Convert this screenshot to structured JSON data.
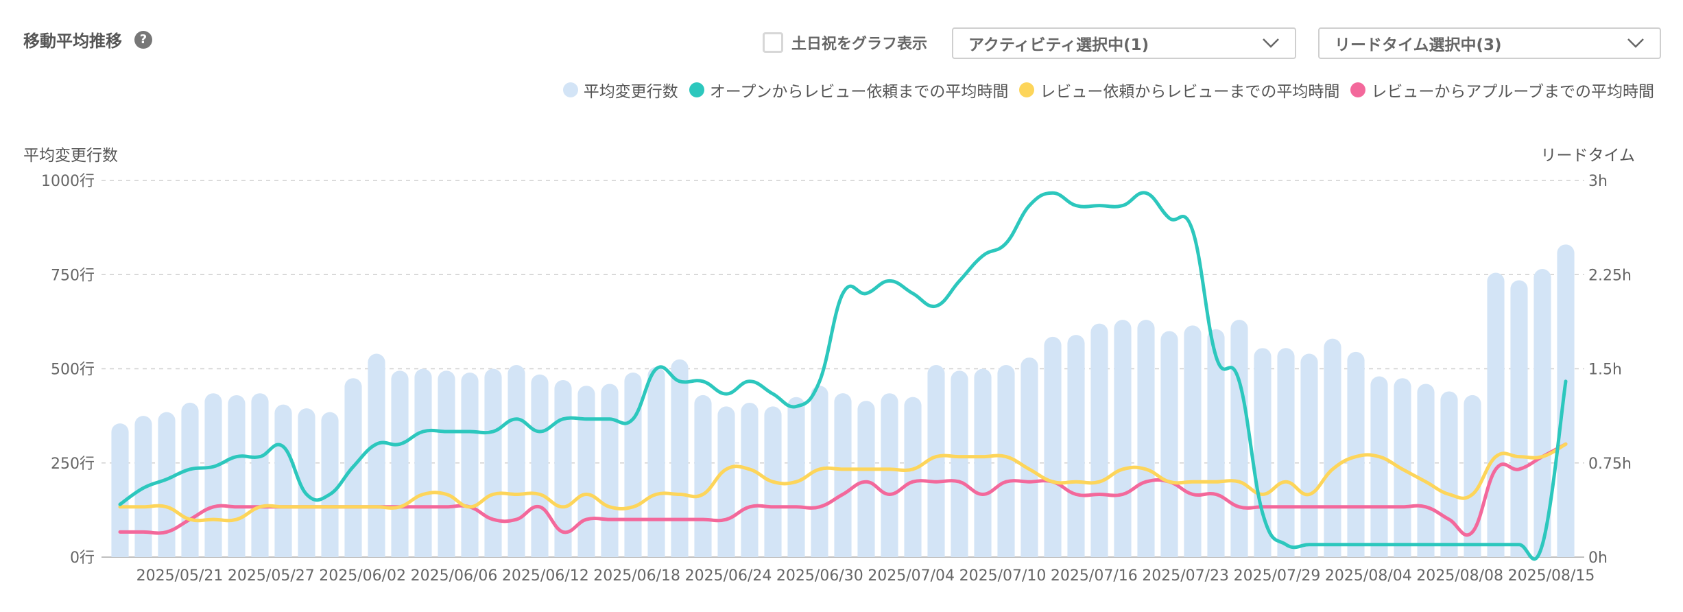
{
  "header": {
    "title": "移動平均推移",
    "help_icon": "question-circle-icon",
    "help_glyph": "?"
  },
  "controls": {
    "weekend_checkbox_label": "土日祝をグラフ表示",
    "weekend_checked": false,
    "activity_select_value": "アクティビティ選択中(1)",
    "leadtime_select_value": "リードタイム選択中(3)",
    "dropdown_icon": "chevron-down-icon"
  },
  "legend": [
    {
      "label": "平均変更行数",
      "color": "#d3e4f6"
    },
    {
      "label": "オープンからレビュー依頼までの平均時間",
      "color": "#2cc7bd"
    },
    {
      "label": "レビュー依頼からレビューまでの平均時間",
      "color": "#fdd55a"
    },
    {
      "label": "レビューからアプルーブまでの平均時間",
      "color": "#f3689b"
    }
  ],
  "chart_data": {
    "type": "bar+line",
    "left_axis_title": "平均変更行数",
    "right_axis_title": "リードタイム",
    "left_ticks": [
      "0行",
      "250行",
      "500行",
      "750行",
      "1000行"
    ],
    "right_ticks": [
      "0h",
      "0.75h",
      "1.5h",
      "2.25h",
      "3h"
    ],
    "left_ylim": [
      0,
      1000
    ],
    "right_ylim": [
      0,
      3
    ],
    "x_tick_labels": [
      "2025/05/21",
      "2025/05/27",
      "2025/06/02",
      "2025/06/06",
      "2025/06/12",
      "2025/06/18",
      "2025/06/24",
      "2025/06/30",
      "2025/07/04",
      "2025/07/10",
      "2025/07/16",
      "2025/07/23",
      "2025/07/29",
      "2025/08/04",
      "2025/08/08",
      "2025/08/15"
    ],
    "grid": "horizontal-dashed",
    "legend_position": "top-right",
    "bar_series": {
      "name": "平均変更行数",
      "color": "#d3e4f6",
      "values": [
        355,
        375,
        385,
        410,
        435,
        430,
        435,
        405,
        395,
        385,
        475,
        540,
        495,
        500,
        495,
        490,
        500,
        510,
        485,
        470,
        455,
        460,
        490,
        505,
        525,
        430,
        400,
        410,
        400,
        425,
        455,
        435,
        415,
        435,
        425,
        510,
        495,
        500,
        510,
        530,
        585,
        590,
        620,
        630,
        630,
        600,
        615,
        605,
        630,
        555,
        555,
        540,
        580,
        545,
        480,
        475,
        460,
        440,
        430,
        755,
        735,
        765,
        830
      ]
    },
    "line_series": [
      {
        "name": "オープンからレビュー依頼までの平均時間",
        "color": "#2cc7bd",
        "values": [
          0.42,
          0.55,
          0.62,
          0.7,
          0.72,
          0.8,
          0.8,
          0.88,
          0.5,
          0.5,
          0.72,
          0.9,
          0.9,
          1.0,
          1.0,
          1.0,
          1.0,
          1.1,
          1.0,
          1.1,
          1.1,
          1.1,
          1.1,
          1.5,
          1.4,
          1.4,
          1.3,
          1.4,
          1.3,
          1.2,
          1.4,
          2.1,
          2.1,
          2.2,
          2.1,
          2.0,
          2.2,
          2.4,
          2.5,
          2.8,
          2.9,
          2.8,
          2.8,
          2.8,
          2.9,
          2.7,
          2.6,
          1.6,
          1.4,
          0.35,
          0.1,
          0.1,
          0.1,
          0.1,
          0.1,
          0.1,
          0.1,
          0.1,
          0.1,
          0.1,
          0.1,
          0.1,
          1.4
        ]
      },
      {
        "name": "レビュー依頼からレビューまでの平均時間",
        "color": "#fdd55a",
        "values": [
          0.4,
          0.4,
          0.4,
          0.3,
          0.3,
          0.3,
          0.4,
          0.4,
          0.4,
          0.4,
          0.4,
          0.4,
          0.4,
          0.5,
          0.5,
          0.4,
          0.5,
          0.5,
          0.5,
          0.4,
          0.5,
          0.4,
          0.4,
          0.5,
          0.5,
          0.5,
          0.7,
          0.7,
          0.6,
          0.6,
          0.7,
          0.7,
          0.7,
          0.7,
          0.7,
          0.8,
          0.8,
          0.8,
          0.8,
          0.7,
          0.6,
          0.6,
          0.6,
          0.7,
          0.7,
          0.6,
          0.6,
          0.6,
          0.6,
          0.5,
          0.6,
          0.5,
          0.7,
          0.8,
          0.8,
          0.7,
          0.6,
          0.5,
          0.5,
          0.8,
          0.8,
          0.8,
          0.9
        ]
      },
      {
        "name": "レビューからアプルーブまでの平均時間",
        "color": "#f3689b",
        "values": [
          0.2,
          0.2,
          0.2,
          0.3,
          0.4,
          0.4,
          0.4,
          0.4,
          0.4,
          0.4,
          0.4,
          0.4,
          0.4,
          0.4,
          0.4,
          0.4,
          0.3,
          0.3,
          0.4,
          0.2,
          0.3,
          0.3,
          0.3,
          0.3,
          0.3,
          0.3,
          0.3,
          0.4,
          0.4,
          0.4,
          0.4,
          0.5,
          0.6,
          0.5,
          0.6,
          0.6,
          0.6,
          0.5,
          0.6,
          0.6,
          0.6,
          0.5,
          0.5,
          0.5,
          0.6,
          0.6,
          0.5,
          0.5,
          0.4,
          0.4,
          0.4,
          0.4,
          0.4,
          0.4,
          0.4,
          0.4,
          0.4,
          0.3,
          0.2,
          0.7,
          0.7,
          0.8,
          0.9
        ]
      }
    ]
  }
}
